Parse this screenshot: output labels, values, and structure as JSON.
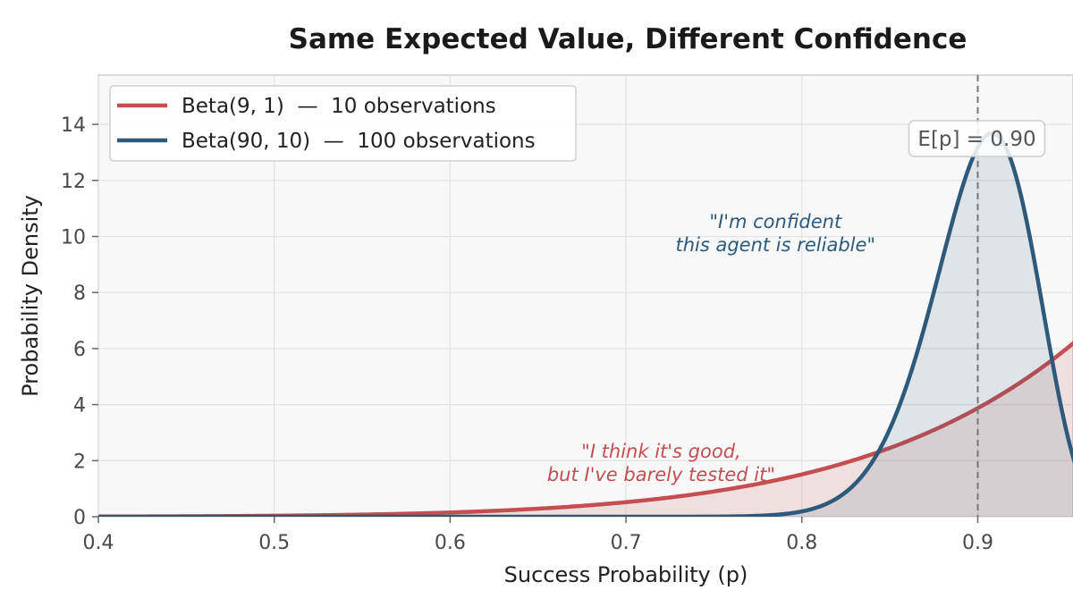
{
  "chart_data": {
    "type": "line",
    "title": "Same Expected Value, Different Confidence",
    "xlabel": "Success Probability (p)",
    "ylabel": "Probability Density",
    "xlim": [
      0.4,
      0.95
    ],
    "ylim": [
      0,
      15.7
    ],
    "xticks": [
      0.4,
      0.5,
      0.6,
      0.7,
      0.8,
      0.9
    ],
    "yticks": [
      0,
      2,
      4,
      6,
      8,
      10,
      12,
      14
    ],
    "grid": true,
    "legend_position": "top-left",
    "series": [
      {
        "name": "Beta(9, 1)  —  10 observations",
        "distribution": "beta",
        "alpha": 9,
        "beta": 1,
        "color": "#c44e52",
        "filled": true
      },
      {
        "name": "Beta(90, 10)  —  100 observations",
        "distribution": "beta",
        "alpha": 90,
        "beta": 10,
        "color": "#2d5a7b",
        "filled": true
      }
    ],
    "reference_line": {
      "x": 0.9,
      "label": "E[p] = 0.90",
      "style": "dashed",
      "color": "#777777"
    },
    "annotations": [
      {
        "lines": [
          "\"I'm confident",
          "this agent is reliable\""
        ],
        "x": 0.785,
        "y": 10.3,
        "color": "#2d5a7b"
      },
      {
        "lines": [
          "\"I think it's good,",
          "but I've barely tested it\""
        ],
        "x": 0.72,
        "y": 2.1,
        "color": "#c44e52"
      }
    ]
  }
}
